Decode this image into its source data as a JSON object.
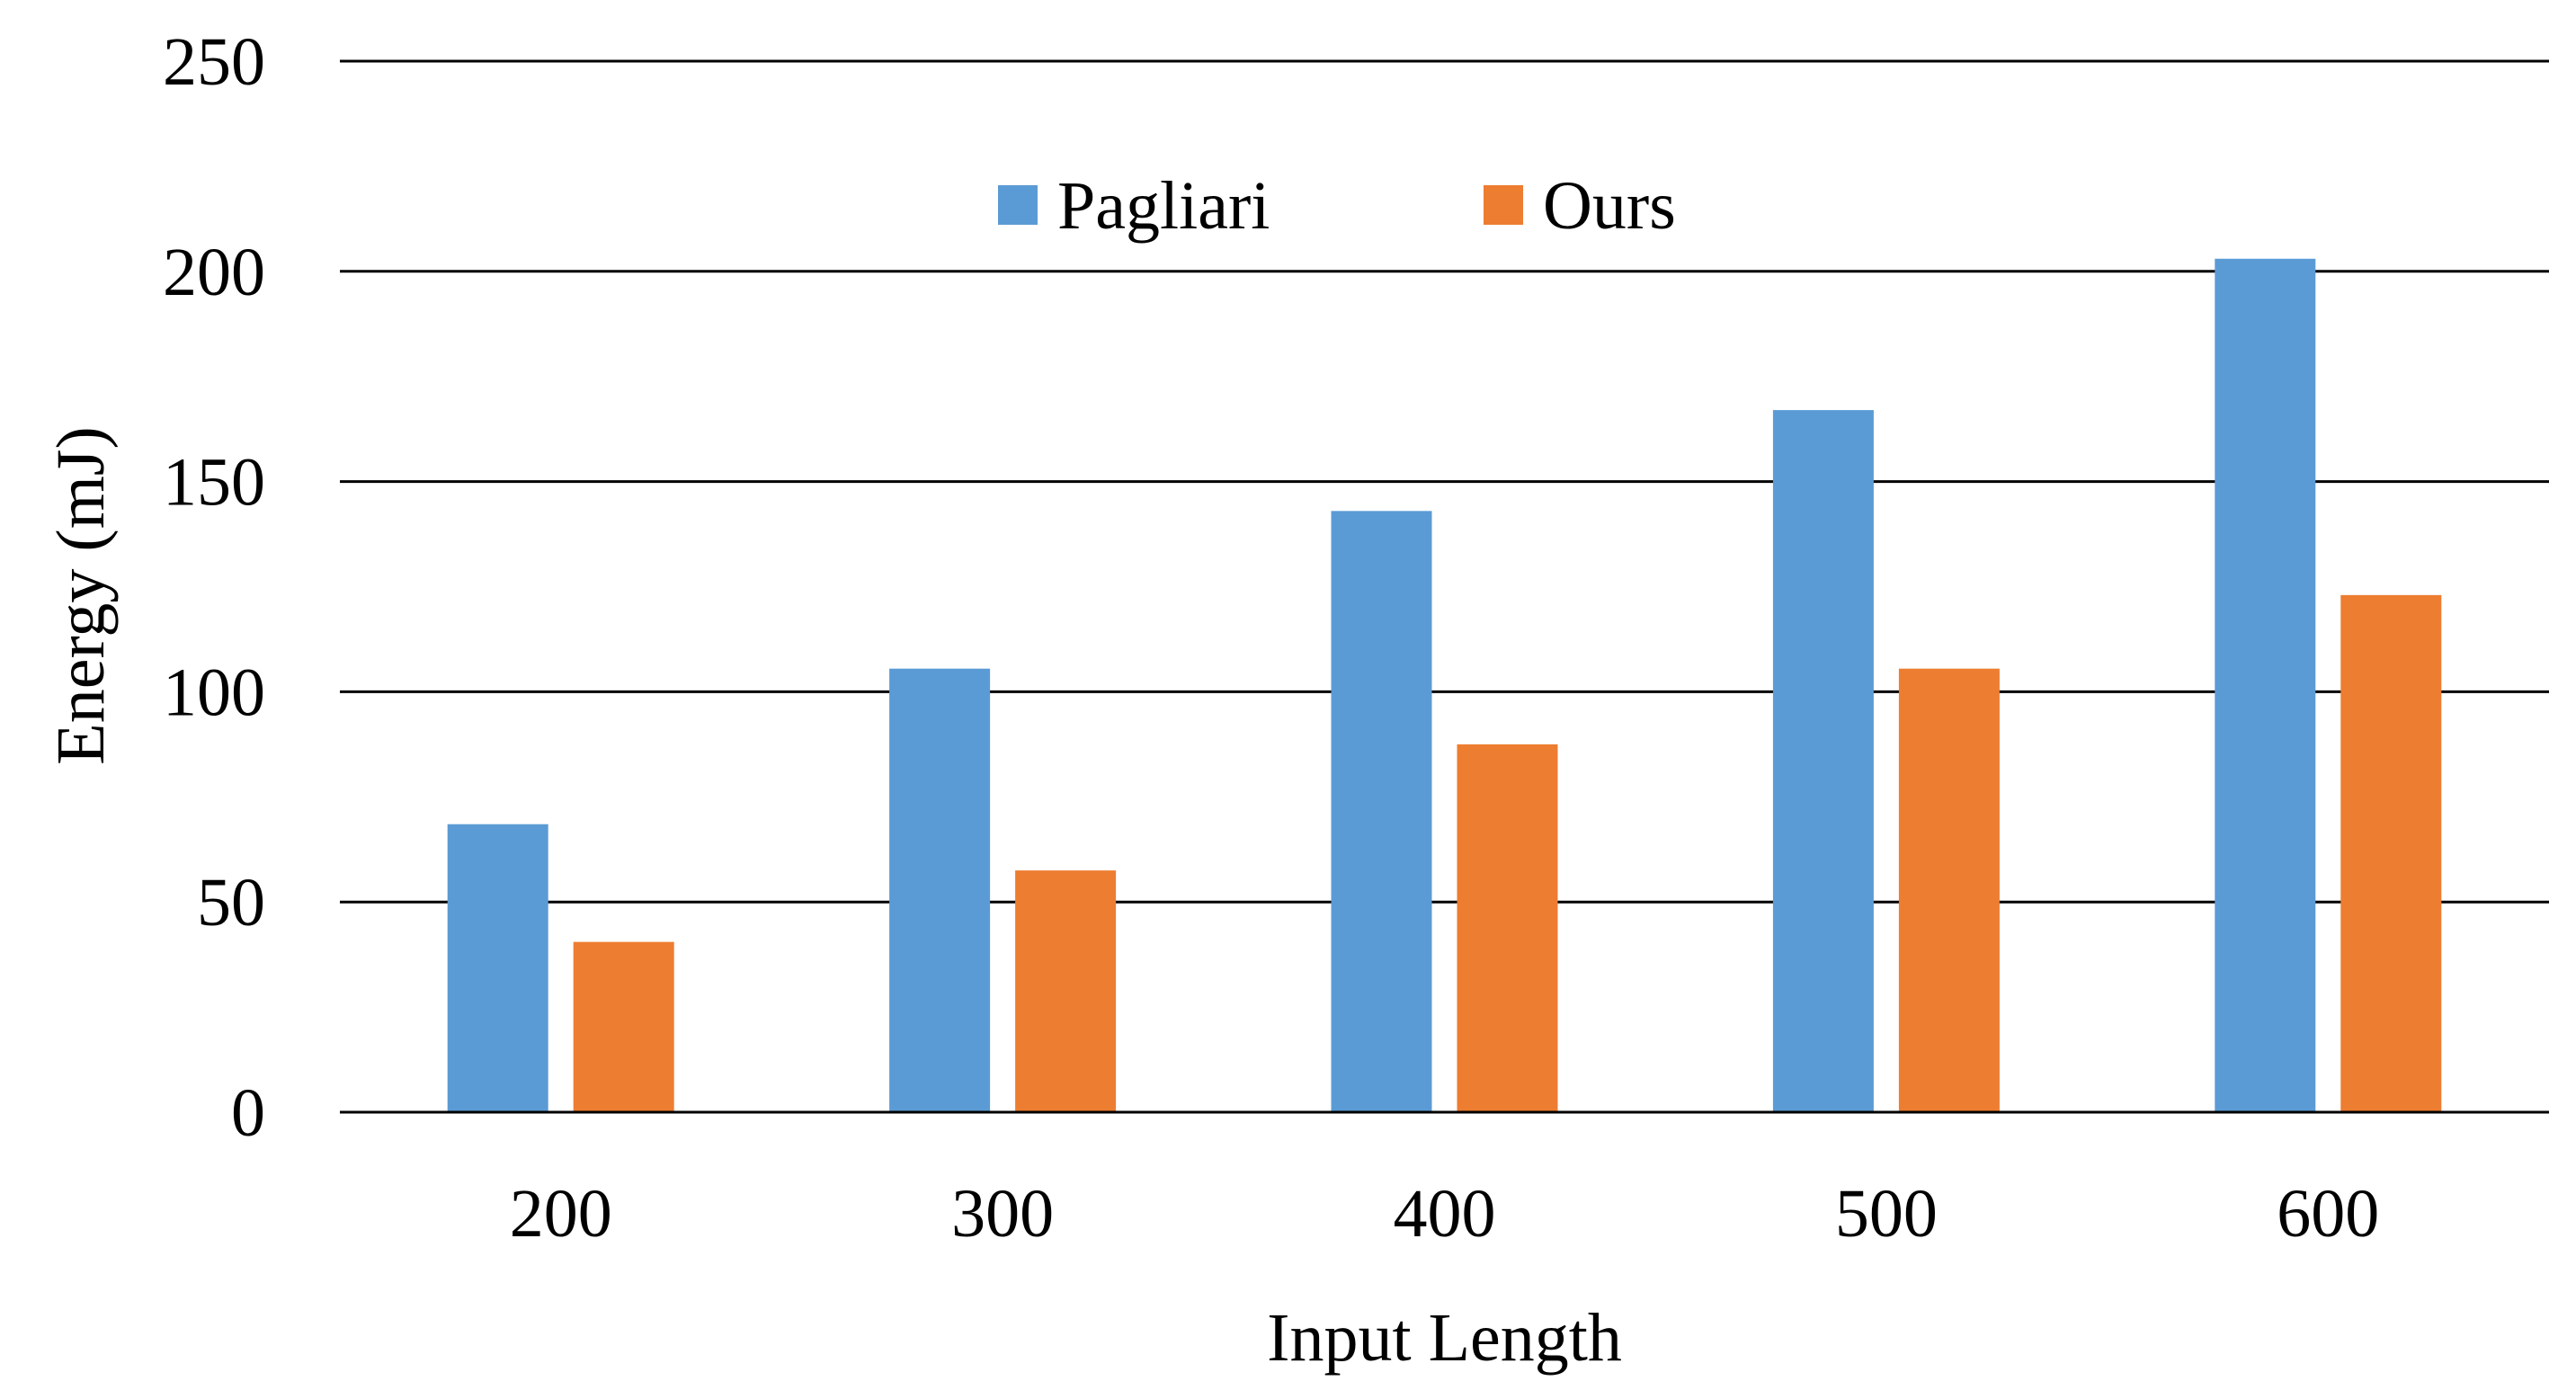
{
  "chart_data": {
    "type": "bar",
    "xlabel": "Input Length",
    "ylabel": "Energy (mJ)",
    "categories": [
      "200",
      "300",
      "400",
      "500",
      "600"
    ],
    "series": [
      {
        "name": "Pagliari",
        "color": "#5B9BD5",
        "values": [
          68.5,
          105.5,
          143,
          167,
          203
        ]
      },
      {
        "name": "Ours",
        "color": "#ED7D31",
        "values": [
          40.5,
          57.5,
          87.5,
          105.5,
          123
        ]
      }
    ],
    "ylim": [
      0,
      250
    ],
    "yticks": [
      "0",
      "50",
      "100",
      "150",
      "200",
      "250"
    ],
    "grid": true,
    "legend": "top-center"
  }
}
